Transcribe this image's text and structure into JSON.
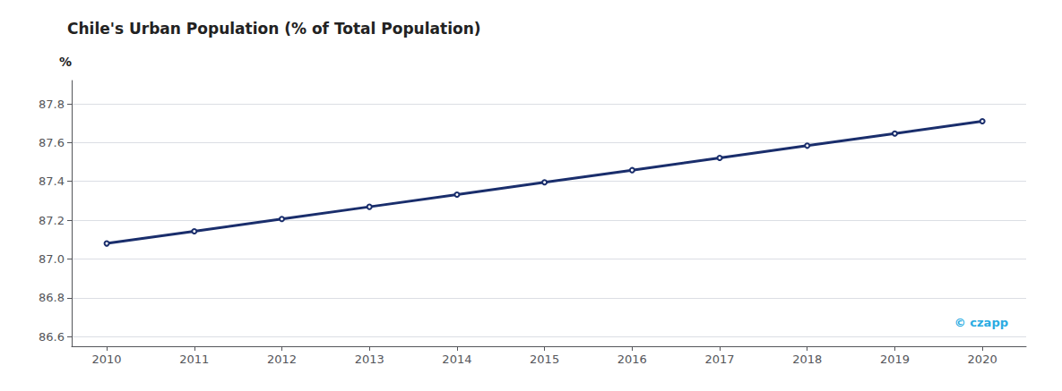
{
  "chart_data": {
    "type": "line",
    "title": "Chile's Urban Population (% of Total Population)",
    "ylabel": "%",
    "x": [
      2010,
      2011,
      2012,
      2013,
      2014,
      2015,
      2016,
      2017,
      2018,
      2019,
      2020
    ],
    "values": [
      87.08,
      87.143,
      87.206,
      87.269,
      87.332,
      87.395,
      87.458,
      87.521,
      87.584,
      87.647,
      87.71
    ],
    "color": "#1a2e6c",
    "xlim": [
      2009.6,
      2020.5
    ],
    "xticks": [
      2010,
      2011,
      2012,
      2013,
      2014,
      2015,
      2016,
      2017,
      2018,
      2019,
      2020
    ],
    "ylim": [
      86.55,
      87.92
    ],
    "yticks": [
      86.6,
      86.8,
      {
        "value": 87.0,
        "label": "87.0"
      },
      87.2,
      87.4,
      87.6,
      87.8
    ],
    "grid": true,
    "annotation": "© czapp"
  }
}
